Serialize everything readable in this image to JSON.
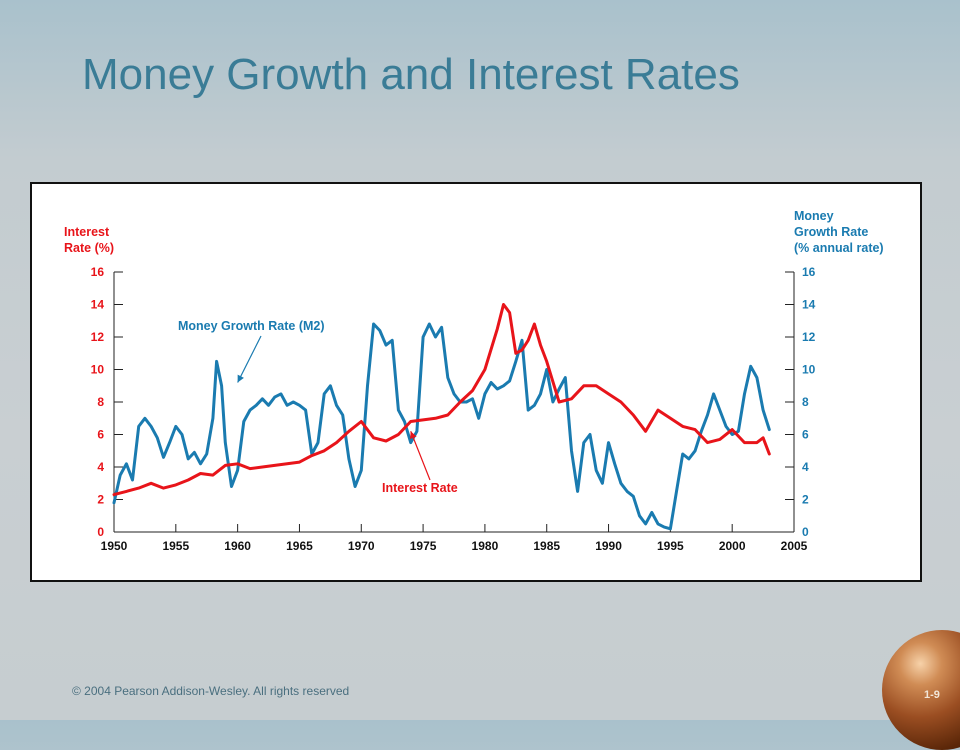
{
  "slide": {
    "title": "Money Growth and Interest Rates",
    "footer": "© 2004 Pearson Addison-Wesley. All rights reserved",
    "slide_number": "1-9"
  },
  "chart_data": {
    "type": "line",
    "title": "",
    "left_axis_label": [
      "Interest",
      "Rate (%)"
    ],
    "right_axis_label": [
      "Money",
      "Growth Rate",
      "(% annual rate)"
    ],
    "xlim": [
      1950,
      2005
    ],
    "ylim": [
      0,
      16
    ],
    "x_ticks": [
      1950,
      1955,
      1960,
      1965,
      1970,
      1975,
      1980,
      1985,
      1990,
      1995,
      2000,
      2005
    ],
    "y_ticks": [
      0,
      2,
      4,
      6,
      8,
      10,
      12,
      14,
      16
    ],
    "colors": {
      "money": "#1a7bb0",
      "interest": "#e8141a",
      "axis": "#222222"
    },
    "annotations": [
      {
        "text": "Money Growth Rate (M2)",
        "series": "money",
        "points_to": [
          1960,
          9.2
        ],
        "color": "#1a7bb0"
      },
      {
        "text": "Interest Rate",
        "series": "interest",
        "points_to": [
          1974,
          6.2
        ],
        "color": "#e8141a"
      }
    ],
    "series": [
      {
        "id": "money",
        "axis": "right",
        "color": "#1a7bb0",
        "x": [
          1950,
          1950.5,
          1951,
          1951.5,
          1952,
          1952.5,
          1953,
          1953.5,
          1954,
          1954.5,
          1955,
          1955.5,
          1956,
          1956.5,
          1957,
          1957.5,
          1958,
          1958.3,
          1958.7,
          1959,
          1959.5,
          1960,
          1960.5,
          1961,
          1961.5,
          1962,
          1962.5,
          1963,
          1963.5,
          1964,
          1964.5,
          1965,
          1965.5,
          1966,
          1966.5,
          1967,
          1967.5,
          1968,
          1968.5,
          1969,
          1969.5,
          1970,
          1970.5,
          1971,
          1971.5,
          1972,
          1972.5,
          1973,
          1973.5,
          1974,
          1974.5,
          1975,
          1975.5,
          1976,
          1976.5,
          1977,
          1977.5,
          1978,
          1978.5,
          1979,
          1979.5,
          1980,
          1980.5,
          1981,
          1981.5,
          1982,
          1982.5,
          1983,
          1983.5,
          1984,
          1984.5,
          1985,
          1985.5,
          1986,
          1986.5,
          1987,
          1987.5,
          1988,
          1988.5,
          1989,
          1989.5,
          1990,
          1990.5,
          1991,
          1991.5,
          1992,
          1992.5,
          1993,
          1993.5,
          1994,
          1994.5,
          1995,
          1995.5,
          1996,
          1996.5,
          1997,
          1997.5,
          1998,
          1998.5,
          1999,
          1999.5,
          2000,
          2000.5,
          2001,
          2001.5,
          2002,
          2002.5,
          2003
        ],
        "y": [
          1.8,
          3.5,
          4.2,
          3.2,
          6.5,
          7.0,
          6.5,
          5.8,
          4.6,
          5.5,
          6.5,
          6.0,
          4.5,
          4.9,
          4.2,
          4.8,
          7.0,
          10.5,
          9.0,
          5.5,
          2.8,
          3.8,
          6.8,
          7.5,
          7.8,
          8.2,
          7.8,
          8.3,
          8.5,
          7.8,
          8.0,
          7.8,
          7.5,
          4.8,
          5.5,
          8.5,
          9.0,
          7.8,
          7.2,
          4.5,
          2.8,
          3.8,
          9.0,
          12.8,
          12.4,
          11.5,
          11.8,
          7.5,
          6.8,
          5.5,
          6.2,
          12.0,
          12.8,
          12.0,
          12.6,
          9.5,
          8.5,
          8.0,
          8.0,
          8.2,
          7.0,
          8.5,
          9.2,
          8.8,
          9.0,
          9.3,
          10.5,
          11.8,
          7.5,
          7.8,
          8.5,
          10.0,
          8.0,
          8.8,
          9.5,
          5.0,
          2.5,
          5.5,
          6.0,
          3.8,
          3.0,
          5.5,
          4.2,
          3.0,
          2.5,
          2.2,
          1.0,
          0.5,
          1.2,
          0.5,
          0.3,
          0.2,
          2.5,
          4.8,
          4.5,
          5.0,
          6.2,
          7.2,
          8.5,
          7.5,
          6.5,
          6.0,
          6.2,
          8.5,
          10.2,
          9.5,
          7.5,
          6.3
        ],
        "label": ""
      },
      {
        "id": "interest",
        "axis": "left",
        "color": "#e8141a",
        "x": [
          1950,
          1951,
          1952,
          1953,
          1954,
          1955,
          1956,
          1957,
          1958,
          1959,
          1960,
          1961,
          1962,
          1963,
          1964,
          1965,
          1966,
          1967,
          1968,
          1969,
          1970,
          1971,
          1972,
          1973,
          1974,
          1975,
          1976,
          1977,
          1978,
          1979,
          1980,
          1981,
          1981.5,
          1982,
          1982.5,
          1983,
          1983.5,
          1984,
          1984.5,
          1985,
          1986,
          1987,
          1988,
          1989,
          1990,
          1991,
          1992,
          1993,
          1994,
          1995,
          1996,
          1997,
          1998,
          1999,
          2000,
          2001,
          2002,
          2002.5,
          2003
        ],
        "y": [
          2.3,
          2.5,
          2.7,
          3.0,
          2.7,
          2.9,
          3.2,
          3.6,
          3.5,
          4.1,
          4.2,
          3.9,
          4.0,
          4.1,
          4.2,
          4.3,
          4.7,
          5.0,
          5.5,
          6.2,
          6.8,
          5.8,
          5.6,
          6.0,
          6.8,
          6.9,
          7.0,
          7.2,
          8.0,
          8.7,
          10.0,
          12.5,
          14.0,
          13.5,
          11.0,
          11.2,
          11.8,
          12.8,
          11.5,
          10.5,
          8.0,
          8.2,
          9.0,
          9.0,
          8.5,
          8.0,
          7.2,
          6.2,
          7.5,
          7.0,
          6.5,
          6.3,
          5.5,
          5.7,
          6.3,
          5.5,
          5.5,
          5.8,
          4.8
        ],
        "label": ""
      }
    ]
  }
}
